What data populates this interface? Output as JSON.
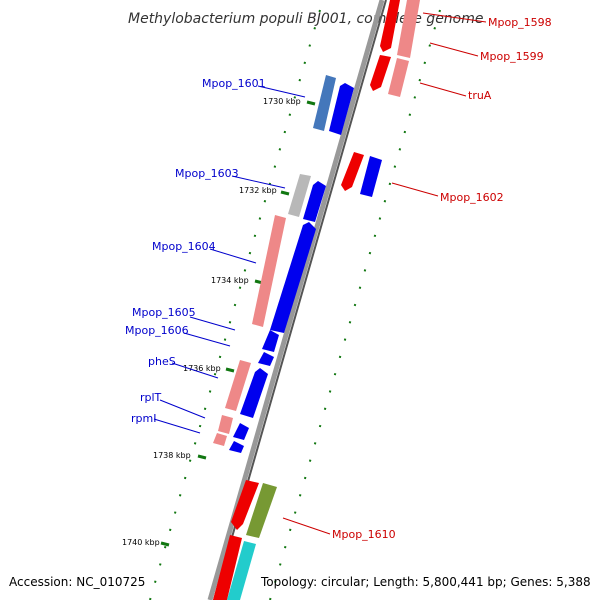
{
  "title": "Methylobacterium populi BJ001, complete genome",
  "footer": {
    "accession": "Accession: NC_010725",
    "summary": "Topology: circular; Length: 5,800,441 bp; Genes: 5,388"
  },
  "colors": {
    "forward_gene": "#0000ee",
    "reverse_gene": "#ee0000",
    "forward_shade": "#4477bb",
    "reverse_shade": "#ee8888",
    "grey_gene": "#b8b8b8",
    "olive_gene": "#779933",
    "cyan_gene": "#22cccc",
    "backbone": "#888888",
    "gc_tick": "#117711",
    "label_blue": "#0000cc",
    "label_red": "#cc0000"
  },
  "scale_labels": [
    "1730 kbp",
    "1732 kbp",
    "1734 kbp",
    "1736 kbp",
    "1738 kbp",
    "1740 kbp"
  ],
  "gene_labels_left": [
    "Mpop_1601",
    "Mpop_1603",
    "Mpop_1604",
    "Mpop_1605",
    "Mpop_1606",
    "pheS",
    "rplT",
    "rpmI"
  ],
  "gene_labels_right": [
    "Mpop_1598",
    "Mpop_1599",
    "truA",
    "Mpop_1602",
    "Mpop_1610"
  ]
}
